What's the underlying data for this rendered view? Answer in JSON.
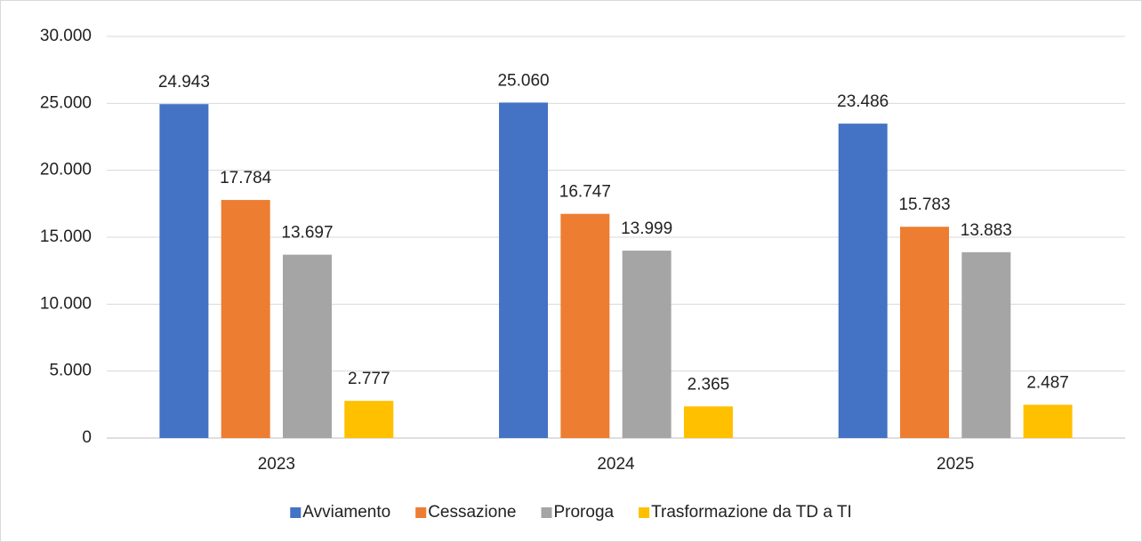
{
  "chart_data": {
    "type": "bar",
    "categories": [
      "2023",
      "2024",
      "2025"
    ],
    "series": [
      {
        "name": "Avviamento",
        "color": "#4472c4",
        "values": [
          24943,
          25060,
          23486
        ],
        "value_labels": [
          "24.943",
          "25.060",
          "23.486"
        ]
      },
      {
        "name": "Cessazione",
        "color": "#ed7d31",
        "values": [
          17784,
          16747,
          15783
        ],
        "value_labels": [
          "17.784",
          "16.747",
          "15.783"
        ]
      },
      {
        "name": "Proroga",
        "color": "#a5a5a5",
        "values": [
          13697,
          13999,
          13883
        ],
        "value_labels": [
          "13.697",
          "13.999",
          "13.883"
        ]
      },
      {
        "name": "Trasformazione da TD a TI",
        "color": "#ffc000",
        "values": [
          2777,
          2365,
          2487
        ],
        "value_labels": [
          "2.777",
          "2.365",
          "2.487"
        ]
      }
    ],
    "ylim": [
      0,
      30000
    ],
    "yticks": [
      0,
      {
        "value": 5000,
        "label": "5.000"
      },
      {
        "value": 10000,
        "label": "10.000"
      },
      {
        "value": 15000,
        "label": "15.000"
      },
      {
        "value": 20000,
        "label": "20.000"
      },
      {
        "value": 25000,
        "label": "25.000"
      },
      {
        "value": 30000,
        "label": "30.000"
      }
    ],
    "grid": true,
    "legend": "bottom"
  }
}
